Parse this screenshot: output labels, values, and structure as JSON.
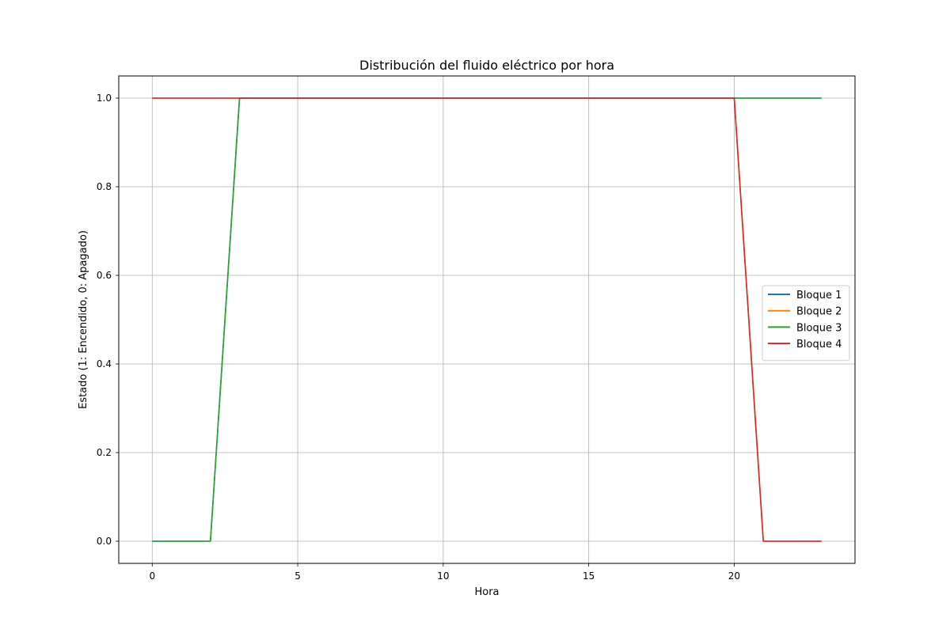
{
  "chart_data": {
    "type": "line",
    "title": "Distribución del fluido eléctrico por hora",
    "xlabel": "Hora",
    "ylabel": "Estado (1: Encendido, 0: Apagado)",
    "xlim": [
      -1.15,
      24.15
    ],
    "ylim": [
      -0.05,
      1.05
    ],
    "xticks": [
      0,
      5,
      10,
      15,
      20
    ],
    "yticks": [
      0.0,
      0.2,
      0.4,
      0.6,
      0.8,
      1.0
    ],
    "xtick_labels": [
      "0",
      "5",
      "10",
      "15",
      "20"
    ],
    "ytick_labels": [
      "0.0",
      "0.2",
      "0.4",
      "0.6",
      "0.8",
      "1.0"
    ],
    "grid": true,
    "legend_position": "center-right",
    "x": [
      0,
      1,
      2,
      3,
      4,
      5,
      6,
      7,
      8,
      9,
      10,
      11,
      12,
      13,
      14,
      15,
      16,
      17,
      18,
      19,
      20,
      21,
      22,
      23
    ],
    "series": [
      {
        "name": "Bloque 1",
        "color": "#1f77b4",
        "values": [
          0,
          0,
          0,
          1,
          1,
          1,
          1,
          1,
          1,
          1,
          1,
          1,
          1,
          1,
          1,
          1,
          1,
          1,
          1,
          1,
          1,
          1,
          1,
          1
        ]
      },
      {
        "name": "Bloque 2",
        "color": "#ff7f0e",
        "values": [
          1,
          1,
          1,
          1,
          1,
          1,
          1,
          1,
          1,
          1,
          1,
          1,
          1,
          1,
          1,
          1,
          1,
          1,
          1,
          1,
          1,
          0,
          0,
          0
        ]
      },
      {
        "name": "Bloque 3",
        "color": "#2ca02c",
        "values": [
          0,
          0,
          0,
          1,
          1,
          1,
          1,
          1,
          1,
          1,
          1,
          1,
          1,
          1,
          1,
          1,
          1,
          1,
          1,
          1,
          1,
          1,
          1,
          1
        ]
      },
      {
        "name": "Bloque 4",
        "color": "#d62728",
        "values": [
          1,
          1,
          1,
          1,
          1,
          1,
          1,
          1,
          1,
          1,
          1,
          1,
          1,
          1,
          1,
          1,
          1,
          1,
          1,
          1,
          1,
          0,
          0,
          0
        ]
      }
    ]
  }
}
